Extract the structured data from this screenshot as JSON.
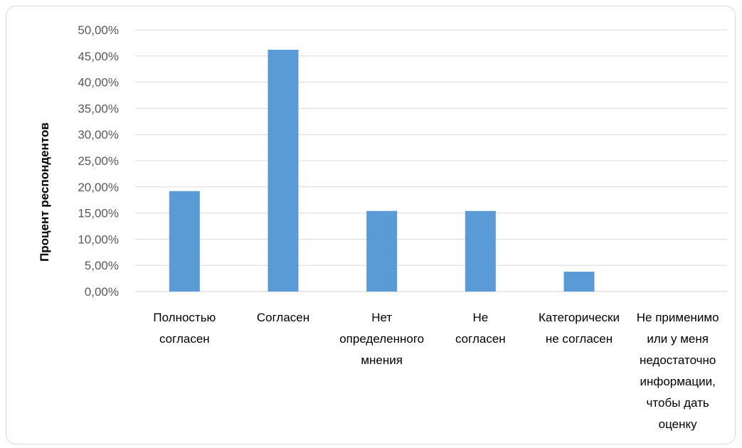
{
  "chart_data": {
    "type": "bar",
    "title": "",
    "xlabel": "",
    "ylabel": "Процент респондентов",
    "ylim": [
      0,
      50
    ],
    "y_ticks": [
      "0,00%",
      "5,00%",
      "10,00%",
      "15,00%",
      "20,00%",
      "25,00%",
      "30,00%",
      "35,00%",
      "40,00%",
      "45,00%",
      "50,00%"
    ],
    "grid": true,
    "legend": "none",
    "bar_color": "#5B9BD5",
    "categories": [
      [
        "Полностью",
        "согласен"
      ],
      [
        "Согласен"
      ],
      [
        "Нет",
        "определенного",
        "мнения"
      ],
      [
        "Не",
        "согласен"
      ],
      [
        "Категорически",
        "не согласен"
      ],
      [
        "Не применимо",
        "или у меня",
        "недостаточно",
        "информации,",
        "чтобы дать",
        "оценку"
      ]
    ],
    "values": [
      19.2,
      46.2,
      15.4,
      15.4,
      3.8,
      0
    ]
  }
}
